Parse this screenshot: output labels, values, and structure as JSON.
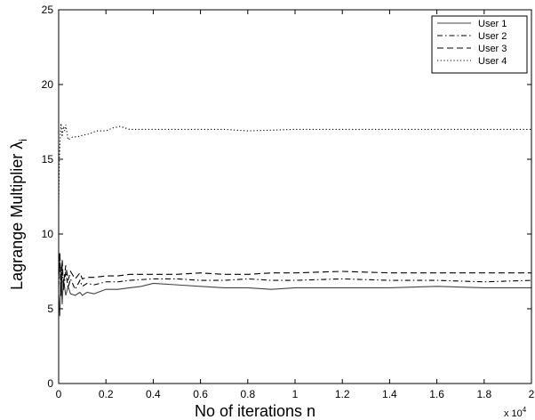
{
  "chart_data": {
    "type": "line",
    "title": "",
    "xlabel": "No of iterations n",
    "ylabel": "Lagrange Multiplier λ",
    "ylabel_subscript": "i",
    "x_multiplier_label": "x 10",
    "x_multiplier_exponent": "4",
    "xlim": [
      0,
      20000
    ],
    "ylim": [
      0,
      25
    ],
    "x_ticks": [
      0,
      2000,
      4000,
      6000,
      8000,
      10000,
      12000,
      14000,
      16000,
      18000,
      20000
    ],
    "x_tick_labels": [
      "0",
      "0.2",
      "0.4",
      "0.6",
      "0.8",
      "1",
      "1.2",
      "1.4",
      "1.6",
      "1.8",
      "2"
    ],
    "y_ticks": [
      0,
      5,
      10,
      15,
      20,
      25
    ],
    "y_tick_labels": [
      "0",
      "5",
      "10",
      "15",
      "20",
      "25"
    ],
    "grid": false,
    "legend_position": "top-right",
    "series": [
      {
        "name": "User 1",
        "dash": "solid",
        "color": "#444444",
        "points": [
          [
            0,
            6.0
          ],
          [
            50,
            4.5
          ],
          [
            100,
            7.8
          ],
          [
            150,
            5.3
          ],
          [
            200,
            7.0
          ],
          [
            300,
            5.9
          ],
          [
            400,
            6.5
          ],
          [
            500,
            6.0
          ],
          [
            700,
            5.9
          ],
          [
            900,
            6.1
          ],
          [
            1000,
            5.9
          ],
          [
            1200,
            6.1
          ],
          [
            1500,
            6.0
          ],
          [
            2000,
            6.3
          ],
          [
            2500,
            6.3
          ],
          [
            3000,
            6.4
          ],
          [
            3500,
            6.5
          ],
          [
            4000,
            6.7
          ],
          [
            5000,
            6.6
          ],
          [
            6000,
            6.5
          ],
          [
            7000,
            6.4
          ],
          [
            8000,
            6.4
          ],
          [
            9000,
            6.3
          ],
          [
            10000,
            6.4
          ],
          [
            12000,
            6.4
          ],
          [
            14000,
            6.4
          ],
          [
            16000,
            6.5
          ],
          [
            18000,
            6.4
          ],
          [
            20000,
            6.4
          ]
        ]
      },
      {
        "name": "User 2",
        "dash": "dashdot",
        "color": "#000000",
        "points": [
          [
            0,
            6.5
          ],
          [
            50,
            8.5
          ],
          [
            100,
            5.8
          ],
          [
            150,
            8.0
          ],
          [
            200,
            6.2
          ],
          [
            300,
            7.5
          ],
          [
            400,
            6.4
          ],
          [
            500,
            7.0
          ],
          [
            700,
            6.3
          ],
          [
            900,
            6.9
          ],
          [
            1000,
            6.5
          ],
          [
            1200,
            6.7
          ],
          [
            1500,
            6.6
          ],
          [
            2000,
            6.8
          ],
          [
            2500,
            6.8
          ],
          [
            3000,
            6.9
          ],
          [
            4000,
            7.0
          ],
          [
            5000,
            7.0
          ],
          [
            6000,
            6.9
          ],
          [
            7000,
            6.9
          ],
          [
            8000,
            7.0
          ],
          [
            9000,
            6.9
          ],
          [
            10000,
            6.9
          ],
          [
            12000,
            7.0
          ],
          [
            14000,
            6.9
          ],
          [
            16000,
            6.9
          ],
          [
            18000,
            6.8
          ],
          [
            20000,
            6.9
          ]
        ]
      },
      {
        "name": "User 3",
        "dash": "dashed",
        "color": "#000000",
        "points": [
          [
            0,
            7.0
          ],
          [
            50,
            8.8
          ],
          [
            100,
            6.2
          ],
          [
            150,
            8.3
          ],
          [
            200,
            6.6
          ],
          [
            300,
            7.9
          ],
          [
            400,
            6.9
          ],
          [
            500,
            7.5
          ],
          [
            700,
            7.0
          ],
          [
            900,
            7.4
          ],
          [
            1000,
            7.0
          ],
          [
            1200,
            7.1
          ],
          [
            1500,
            7.1
          ],
          [
            2000,
            7.2
          ],
          [
            2500,
            7.2
          ],
          [
            3000,
            7.3
          ],
          [
            4000,
            7.3
          ],
          [
            5000,
            7.3
          ],
          [
            6000,
            7.4
          ],
          [
            7000,
            7.3
          ],
          [
            8000,
            7.3
          ],
          [
            9000,
            7.4
          ],
          [
            10000,
            7.4
          ],
          [
            12000,
            7.5
          ],
          [
            14000,
            7.4
          ],
          [
            16000,
            7.4
          ],
          [
            18000,
            7.4
          ],
          [
            20000,
            7.4
          ]
        ]
      },
      {
        "name": "User 4",
        "dash": "dotted",
        "color": "#000000",
        "points": [
          [
            0,
            12.0
          ],
          [
            30,
            15.0
          ],
          [
            60,
            16.3
          ],
          [
            100,
            17.4
          ],
          [
            150,
            16.5
          ],
          [
            200,
            17.2
          ],
          [
            250,
            16.9
          ],
          [
            300,
            17.3
          ],
          [
            400,
            16.3
          ],
          [
            600,
            16.5
          ],
          [
            800,
            16.5
          ],
          [
            1000,
            16.6
          ],
          [
            1300,
            16.7
          ],
          [
            1600,
            16.9
          ],
          [
            2000,
            16.9
          ],
          [
            2300,
            17.1
          ],
          [
            2600,
            17.2
          ],
          [
            3000,
            17.0
          ],
          [
            4000,
            17.0
          ],
          [
            5000,
            17.0
          ],
          [
            6000,
            17.0
          ],
          [
            7000,
            17.0
          ],
          [
            8000,
            16.9
          ],
          [
            10000,
            17.0
          ],
          [
            12000,
            17.0
          ],
          [
            14000,
            17.0
          ],
          [
            16000,
            17.0
          ],
          [
            18000,
            17.0
          ],
          [
            20000,
            17.0
          ]
        ]
      }
    ]
  }
}
